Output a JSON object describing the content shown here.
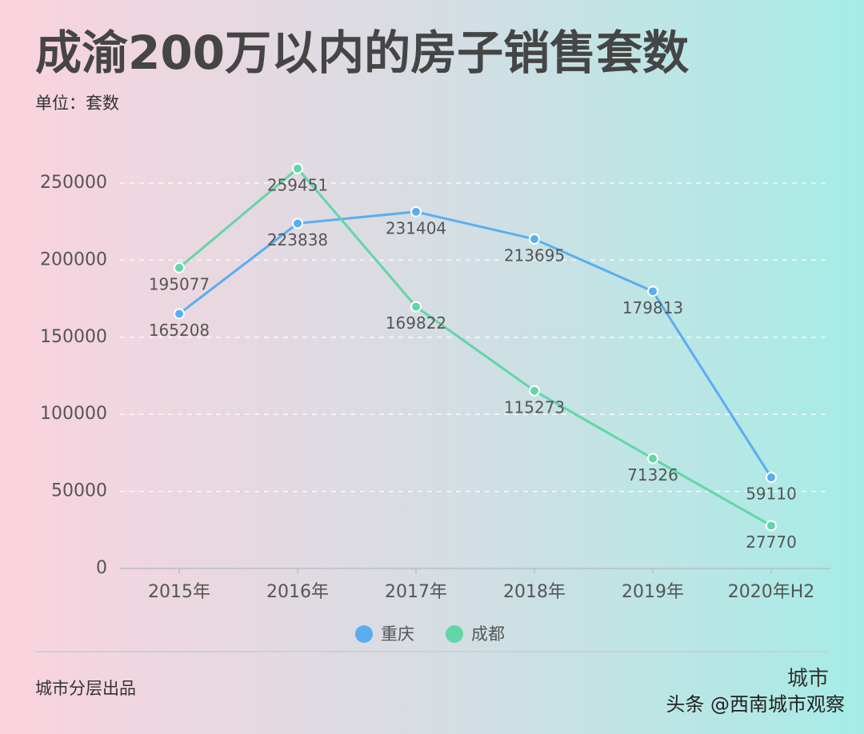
{
  "chart_data": {
    "type": "line",
    "title": "成渝200万以内的房子销售套数",
    "subtitle": "单位：套数",
    "categories": [
      "2015年",
      "2016年",
      "2017年",
      "2018年",
      "2019年",
      "2020年H2"
    ],
    "series": [
      {
        "name": "重庆",
        "color": "#5aaef0",
        "values": [
          165208,
          223838,
          231404,
          213695,
          179813,
          59110
        ]
      },
      {
        "name": "成都",
        "color": "#62d6a6",
        "values": [
          195077,
          259451,
          169822,
          115273,
          71326,
          27770
        ]
      }
    ],
    "ylim": [
      0,
      250000
    ],
    "yticks": [
      0,
      50000,
      100000,
      150000,
      200000,
      250000
    ],
    "grid": true,
    "legend": "bottom",
    "footer": "城市分层出品",
    "watermark": "头条 @西南城市观察",
    "logo": "城市"
  }
}
